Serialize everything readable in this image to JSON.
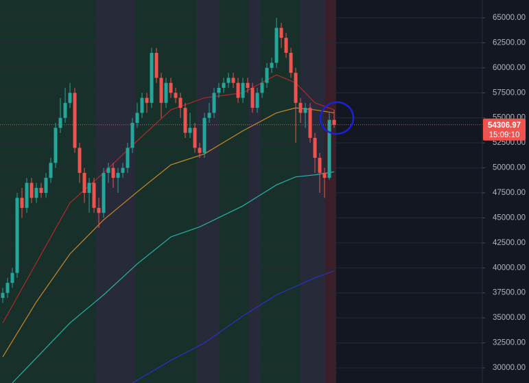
{
  "chart_data": {
    "type": "candlestick",
    "up_color": "#26a69a",
    "down_color": "#ef5350",
    "open": [
      37000,
      37500,
      38500,
      39500,
      47000,
      46000,
      48500,
      47000,
      48000,
      47500,
      49000,
      50500,
      54000,
      55000,
      56500,
      57500,
      52000,
      49500,
      47500,
      48500,
      46000,
      45500,
      49500,
      50000,
      49000,
      49500,
      50000,
      52000,
      54500,
      55500,
      57000,
      56500,
      61500,
      59000,
      56500,
      58500,
      57500,
      57000,
      56000,
      53500,
      54000,
      52000,
      51500,
      55000,
      55500,
      57500,
      58000,
      58500,
      59000,
      58500,
      57000,
      58500,
      58000,
      56000,
      57500,
      58500,
      60000,
      60500,
      64000,
      63000,
      61500,
      59500,
      56500,
      55500,
      56000,
      53000,
      51000,
      49500,
      49000,
      54800
    ],
    "high": [
      38000,
      39000,
      40000,
      47500,
      48000,
      49000,
      49000,
      48500,
      48500,
      49500,
      51000,
      54500,
      57000,
      58000,
      58500,
      58000,
      52500,
      50000,
      49000,
      49000,
      47000,
      50000,
      50500,
      50500,
      50000,
      50500,
      52500,
      55000,
      56500,
      57500,
      57500,
      62000,
      62000,
      59500,
      59000,
      59000,
      58000,
      57500,
      56500,
      55500,
      54500,
      52500,
      55500,
      56500,
      58000,
      58500,
      59000,
      59500,
      59500,
      59000,
      59000,
      59000,
      58500,
      58000,
      59000,
      60500,
      61000,
      65000,
      64500,
      63500,
      62000,
      60000,
      57000,
      56500,
      56500,
      53500,
      51500,
      50000,
      55500,
      55800
    ],
    "low": [
      36500,
      37000,
      38000,
      39000,
      45000,
      45500,
      46500,
      46500,
      47000,
      47000,
      48500,
      50000,
      53500,
      54500,
      56000,
      51500,
      48500,
      46500,
      45500,
      45500,
      44000,
      45000,
      48500,
      48000,
      47500,
      49000,
      49500,
      51500,
      54000,
      55000,
      55500,
      56000,
      58500,
      55000,
      56000,
      57000,
      56500,
      55000,
      53000,
      53000,
      51500,
      51000,
      51000,
      54500,
      55000,
      57000,
      57500,
      58000,
      58000,
      56500,
      56500,
      57500,
      55500,
      55500,
      57000,
      58000,
      59500,
      60000,
      62000,
      61000,
      59000,
      52500,
      54500,
      54000,
      52500,
      49500,
      47500,
      47000,
      48800,
      54000
    ],
    "close": [
      37500,
      38500,
      39500,
      47000,
      46000,
      48500,
      47000,
      48000,
      47500,
      49000,
      50500,
      54000,
      55000,
      56500,
      57500,
      52000,
      49500,
      47500,
      48500,
      46000,
      45500,
      49500,
      50000,
      49000,
      49500,
      50000,
      52000,
      54500,
      55500,
      57000,
      56500,
      61500,
      59000,
      56500,
      58500,
      57500,
      57000,
      56000,
      53500,
      54000,
      52000,
      51500,
      55000,
      55500,
      57500,
      58000,
      58500,
      59000,
      58500,
      57000,
      58500,
      58000,
      56000,
      57500,
      58500,
      60000,
      60500,
      64000,
      63000,
      61500,
      59500,
      56500,
      55500,
      56000,
      53000,
      51000,
      49500,
      49000,
      54800,
      54306.97
    ],
    "moving_averages": [
      {
        "color": "#b2282e",
        "x": [
          0,
          7,
          14,
          21,
          28,
          35,
          42,
          50,
          57,
          61,
          65,
          69
        ],
        "values": [
          34500,
          40500,
          46500,
          49500,
          52700,
          55800,
          57000,
          57500,
          59300,
          58500,
          56500,
          55800
        ]
      },
      {
        "color": "#c8892a",
        "x": [
          0,
          7,
          14,
          21,
          28,
          35,
          42,
          50,
          57,
          61,
          65,
          69
        ],
        "values": [
          31100,
          36600,
          41400,
          44800,
          47600,
          50300,
          51400,
          53700,
          55500,
          56000,
          55800,
          55500
        ]
      },
      {
        "color": "#26b3a6",
        "x": [
          2,
          14,
          21,
          28,
          35,
          41,
          50,
          57,
          61,
          65,
          69
        ],
        "values": [
          28500,
          34500,
          37300,
          40400,
          43100,
          44100,
          46200,
          48300,
          49100,
          49300,
          49600
        ]
      },
      {
        "color": "#2932c8",
        "x": [
          27,
          35,
          42,
          50,
          57,
          65,
          69
        ],
        "values": [
          28500,
          30750,
          32500,
          35200,
          37300,
          39000,
          39700
        ]
      }
    ],
    "ylim": [
      28490,
      66784
    ],
    "yticks": [
      {
        "value": 30000,
        "label": "30000.00"
      },
      {
        "value": 32500,
        "label": "32500.00"
      },
      {
        "value": 35000,
        "label": "35000.00"
      },
      {
        "value": 37500,
        "label": "37500.00"
      },
      {
        "value": 40000,
        "label": "40000.00"
      },
      {
        "value": 42500,
        "label": "42500.00"
      },
      {
        "value": 45000,
        "label": "45000.00"
      },
      {
        "value": 47500,
        "label": "47500.00"
      },
      {
        "value": 50000,
        "label": "50000.00"
      },
      {
        "value": 52500,
        "label": "52500.00"
      },
      {
        "value": 55000,
        "label": "55000.00"
      },
      {
        "value": 57500,
        "label": "57500.00"
      },
      {
        "value": 60000,
        "label": "60000.00"
      },
      {
        "value": 62500,
        "label": "62500.00"
      },
      {
        "value": 65000,
        "label": "65000.00"
      }
    ],
    "grid": true,
    "current_price": 54306.97,
    "countdown": "15:09:10"
  }
}
